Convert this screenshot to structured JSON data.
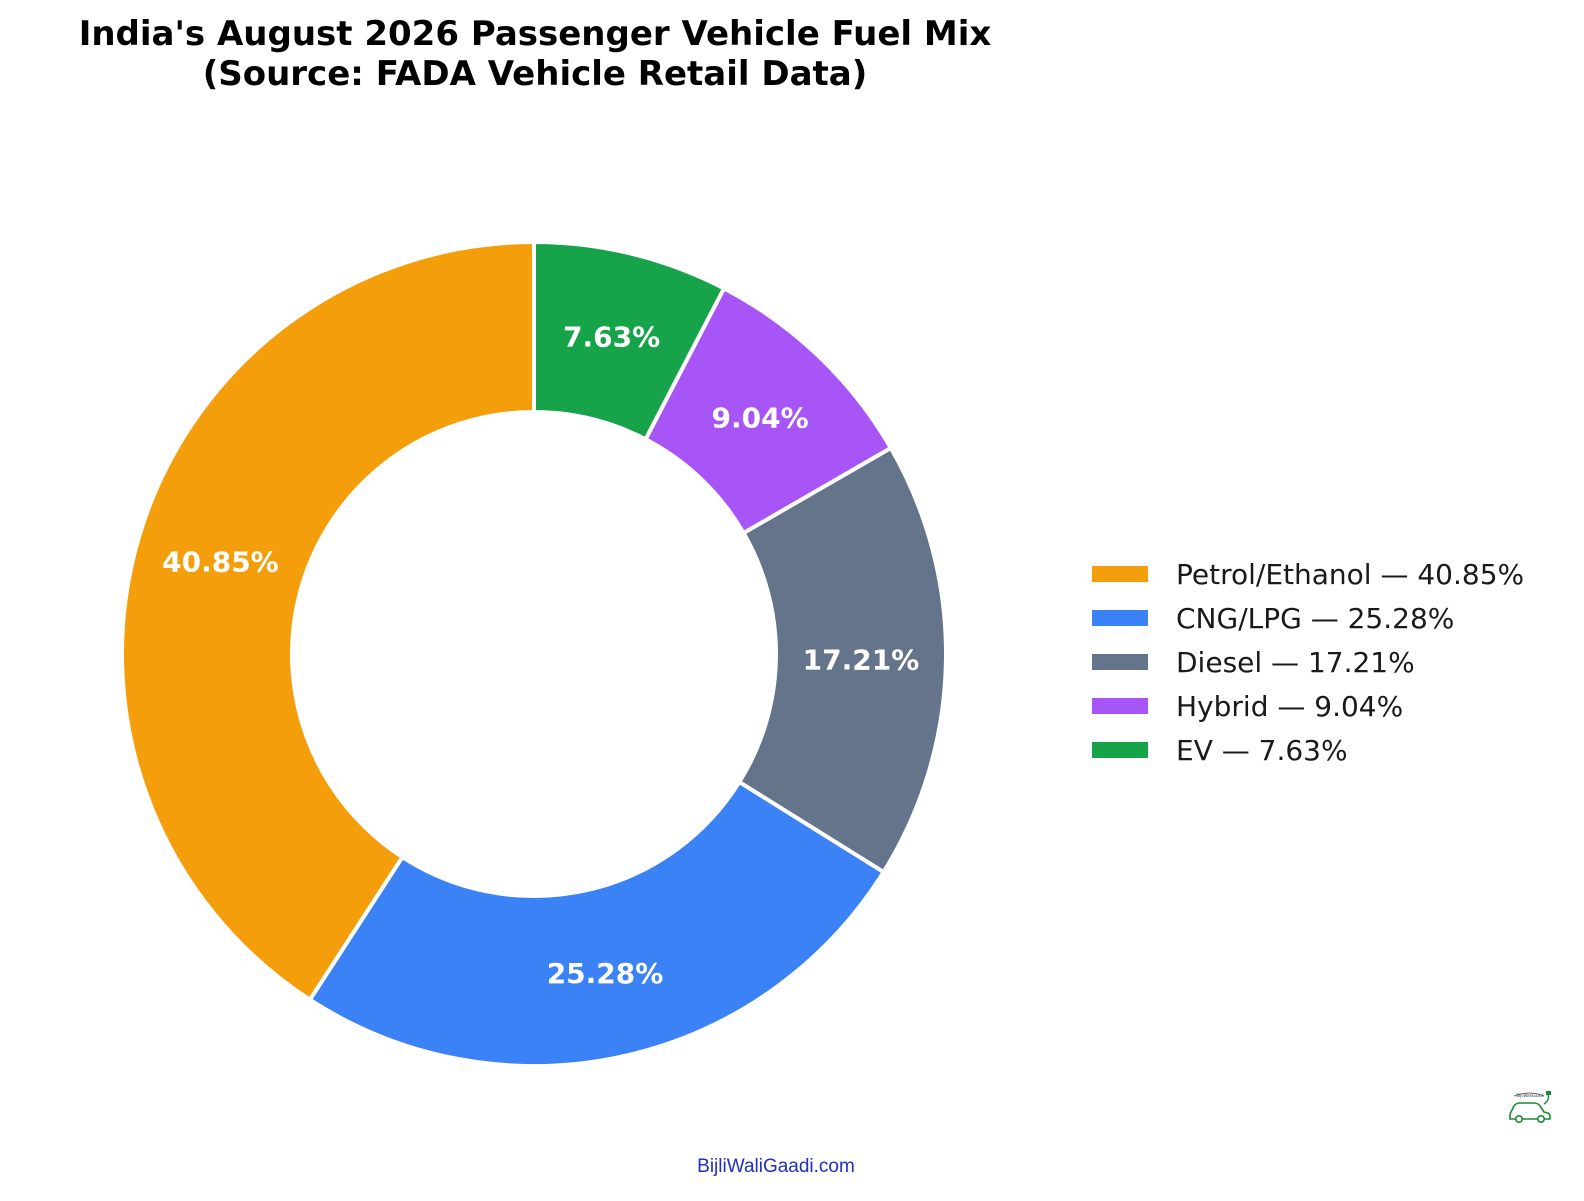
{
  "title": {
    "line1": "India's August 2026 Passenger Vehicle Fuel Mix",
    "line2": "(Source: FADA Vehicle Retail Data)"
  },
  "chart_data": {
    "type": "pie",
    "variant": "donut",
    "start": "top, clockwise",
    "labels": [
      "EV",
      "Hybrid",
      "Diesel",
      "CNG/LPG",
      "Petrol/Ethanol"
    ],
    "values": [
      7.63,
      9.04,
      17.21,
      25.28,
      40.85
    ],
    "value_labels": [
      "7.63%",
      "9.04%",
      "17.21%",
      "25.28%",
      "40.85%"
    ],
    "colors": [
      "#16a34a",
      "#a855f7",
      "#64748b",
      "#3b82f6",
      "#f59e0b"
    ],
    "legend_position": "right",
    "legend": [
      {
        "label": "Petrol/Ethanol — 40.85%",
        "color": "#f59e0b"
      },
      {
        "label": "CNG/LPG — 25.28%",
        "color": "#3b82f6"
      },
      {
        "label": "Diesel — 17.21%",
        "color": "#64748b"
      },
      {
        "label": "Hybrid — 9.04%",
        "color": "#a855f7"
      },
      {
        "label": "EV — 7.63%",
        "color": "#16a34a"
      }
    ]
  },
  "footer": {
    "site": "BijliWaliGaadi.com",
    "logo_text": "BijliWaliGaadi"
  },
  "logo_icon": "car-plug-icon"
}
